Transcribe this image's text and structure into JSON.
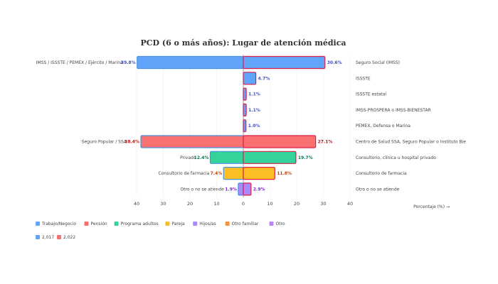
{
  "chart_data": {
    "type": "bar",
    "title": "PCD (6 o más años): Lugar de atención médica",
    "xlabel": "Porcentaje (%) →",
    "xlim": [
      -40,
      40
    ],
    "ticks": [
      "40",
      "30",
      "20",
      "10",
      "0",
      "10",
      "20",
      "30",
      "40"
    ],
    "rows": [
      {
        "left_label": "IMSS / ISSSTE / PEMEX / Ejército / Marina",
        "left": 39.8,
        "left_text": "39.8%",
        "right_label": "Seguro Social (IMSS)",
        "right": 30.6,
        "right_text": "30.6%",
        "color": "#60a5fa",
        "text_color": "#3b4fc4"
      },
      {
        "left_label": "",
        "left": null,
        "left_text": "",
        "right_label": "ISSSTE",
        "right": 4.7,
        "right_text": "4.7%",
        "color": "#60a5fa",
        "text_color": "#3b4fc4"
      },
      {
        "left_label": "",
        "left": null,
        "left_text": "",
        "right_label": "ISSSTE estatal",
        "right": 1.1,
        "right_text": "1.1%",
        "color": "#60a5fa",
        "text_color": "#3b4fc4"
      },
      {
        "left_label": "",
        "left": null,
        "left_text": "",
        "right_label": "IMSS-PROSPERA o IMSS-BIENESTAR",
        "right": 1.1,
        "right_text": "1.1%",
        "color": "#60a5fa",
        "text_color": "#3b4fc4"
      },
      {
        "left_label": "",
        "left": null,
        "left_text": "",
        "right_label": "PEMEX, Defensa o Marina",
        "right": 1.0,
        "right_text": "1.0%",
        "color": "#60a5fa",
        "text_color": "#3b4fc4"
      },
      {
        "left_label": "Seguro Popular / SSA",
        "left": 38.4,
        "left_text": "38.4%",
        "right_label": "Centro de Salud SSA, Seguro Popular o Instituto Bie",
        "right": 27.1,
        "right_text": "27.1%",
        "color": "#f87171",
        "text_color": "#b91c1c"
      },
      {
        "left_label": "Privado",
        "left": 12.4,
        "left_text": "12.4%",
        "right_label": "Consultorio, clínica u hospital privado",
        "right": 19.7,
        "right_text": "19.7%",
        "color": "#34d399",
        "text_color": "#047857"
      },
      {
        "left_label": "Consultorio de farmacia",
        "left": 7.4,
        "left_text": "7.4%",
        "right_label": "Consultorio de farmacia",
        "right": 11.8,
        "right_text": "11.8%",
        "color": "#fbbf24",
        "text_color": "#c2410c"
      },
      {
        "left_label": "Otro o no se atiende",
        "left": 1.9,
        "left_text": "1.9%",
        "right_label": "Otro o no se atiende",
        "right": 2.9,
        "right_text": "2.9%",
        "color": "#a78bfa",
        "text_color": "#7e22ce"
      }
    ],
    "legend1": [
      {
        "label": "Trabajo/Negocio",
        "color": "#60a5fa"
      },
      {
        "label": "Pensión",
        "color": "#f87171"
      },
      {
        "label": "Programa adultos",
        "color": "#34d399"
      },
      {
        "label": "Pareja",
        "color": "#fbbf24"
      },
      {
        "label": "Hijos/as",
        "color": "#a78bfa"
      },
      {
        "label": "Otro familiar",
        "color": "#fb923c"
      },
      {
        "label": "Otro",
        "color": "#c084fc"
      }
    ],
    "legend2": [
      {
        "label": "2,017",
        "color": "#60a5fa"
      },
      {
        "label": "2,022",
        "color": "#f87171"
      }
    ],
    "left_outline": "#4a90e2",
    "right_outline": "#e11d48"
  }
}
